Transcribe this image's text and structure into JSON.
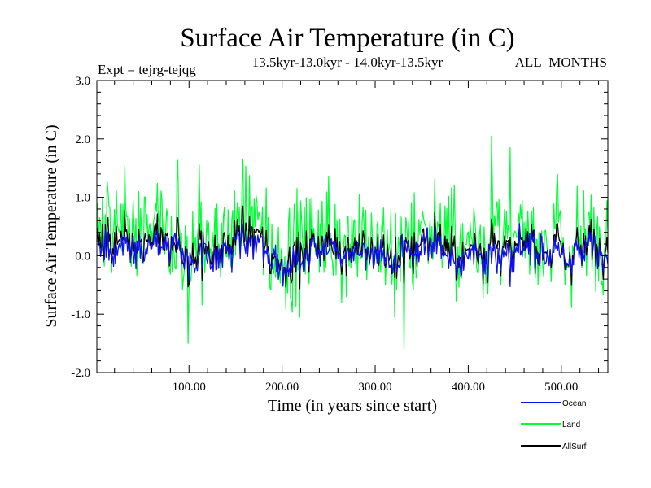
{
  "chart_data": {
    "type": "line",
    "title": "Surface Air Temperature (in C)",
    "subtitle_left": "Expt = tejrg-tejqg",
    "subtitle_center": "13.5kyr-13.0kyr - 14.0kyr-13.5kyr",
    "subtitle_right": "ALL_MONTHS",
    "xlabel": "Time (in years since start)",
    "ylabel": "Surface Air Temperature (in C)",
    "xlim": [
      1,
      550
    ],
    "ylim": [
      -2.0,
      3.0
    ],
    "xticks": [
      100,
      200,
      300,
      400,
      500
    ],
    "xtick_labels": [
      "100.00",
      "200.00",
      "300.00",
      "400.00",
      "500.00"
    ],
    "yticks": [
      -2.0,
      -1.0,
      0.0,
      1.0,
      2.0,
      3.0
    ],
    "ytick_labels": [
      "-2.0",
      "-1.0",
      "0.0",
      "1.0",
      "2.0",
      "3.0"
    ],
    "series": [
      {
        "name": "Land",
        "color": "#00ff33",
        "mean": 0.3,
        "spread": 0.45,
        "min": -1.6,
        "max": 2.05,
        "notable_peaks": [
          [
            425,
            2.05
          ],
          [
            445,
            1.85
          ],
          [
            111,
            1.55
          ],
          [
            331,
            -1.6
          ],
          [
            99,
            -1.5
          ]
        ]
      },
      {
        "name": "Ocean",
        "color": "#1010ee",
        "mean": 0.05,
        "spread": 0.15,
        "min": -0.55,
        "max": 0.55
      },
      {
        "name": "AllSurf",
        "color": "#000000",
        "mean": 0.1,
        "spread": 0.2
      }
    ],
    "legend": {
      "placement": "bottom-right",
      "entries": [
        "Ocean",
        "Land",
        "AllSurf"
      ]
    }
  }
}
